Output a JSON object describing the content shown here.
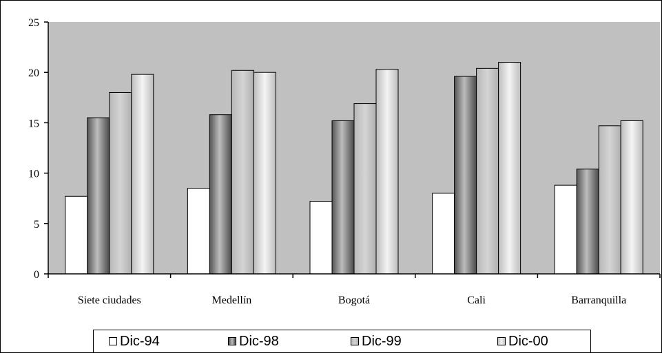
{
  "chart_data": {
    "type": "bar",
    "categories": [
      "Siete ciudades",
      "Medellín",
      "Bogotá",
      "Cali",
      "Barranquilla"
    ],
    "series": [
      {
        "name": "Dic-94",
        "values": [
          7.7,
          8.5,
          7.2,
          8.0,
          8.8
        ],
        "color": "#ffffff"
      },
      {
        "name": "Dic-98",
        "values": [
          15.5,
          15.8,
          15.2,
          19.6,
          10.4
        ],
        "color": "#808080"
      },
      {
        "name": "Dic-99",
        "values": [
          18.0,
          20.2,
          16.9,
          20.4,
          14.7
        ],
        "color": "#c8c8c8"
      },
      {
        "name": "Dic-00",
        "values": [
          19.8,
          20.0,
          20.3,
          21.0,
          15.2
        ],
        "color": "#dcdcdc"
      }
    ],
    "yticks": [
      "0",
      "5",
      "10",
      "15",
      "20",
      "25"
    ],
    "ylim": [
      0,
      25
    ],
    "plot_background": "#c0c0c0",
    "grid": false,
    "legend_position": "bottom"
  }
}
